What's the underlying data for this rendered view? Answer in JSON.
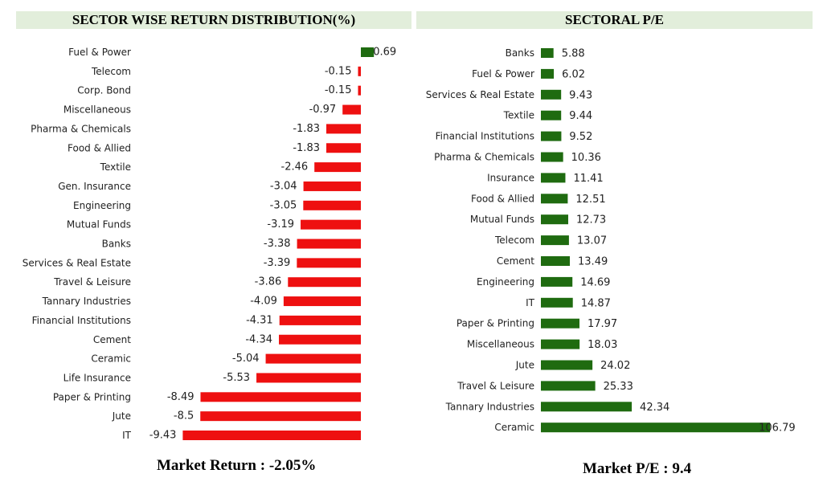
{
  "left_footer": "Market Return : -2.05%",
  "right_footer": "Market P/E : 9.4",
  "colors": {
    "negative": "#ee1010",
    "positive": "#1f6b10",
    "pe": "#1f6b10",
    "title_bg": "#e2eedb"
  },
  "chart_data": [
    {
      "type": "bar",
      "orientation": "horizontal",
      "title": "SECTOR WISE RETURN DISTRIBUTION(%)",
      "xlim": [
        -9.43,
        0.69
      ],
      "categories": [
        "Fuel & Power",
        "Telecom",
        "Corp. Bond",
        "Miscellaneous",
        "Pharma & Chemicals",
        "Food & Allied",
        "Textile",
        "Gen. Insurance",
        "Engineering",
        "Mutual Funds",
        "Banks",
        "Services & Real Estate",
        "Travel & Leisure",
        "Tannary Industries",
        "Financial Institutions",
        "Cement",
        "Ceramic",
        "Life Insurance",
        "Paper & Printing",
        "Jute",
        "IT"
      ],
      "values": [
        0.69,
        -0.15,
        -0.15,
        -0.97,
        -1.83,
        -1.83,
        -2.46,
        -3.04,
        -3.05,
        -3.19,
        -3.38,
        -3.39,
        -3.86,
        -4.09,
        -4.31,
        -4.34,
        -5.04,
        -5.53,
        -8.49,
        -8.5,
        -9.43
      ]
    },
    {
      "type": "bar",
      "orientation": "horizontal",
      "title": "SECTORAL P/E",
      "xlim": [
        0,
        106.79
      ],
      "categories": [
        "Banks",
        "Fuel & Power",
        "Services & Real Estate",
        "Textile",
        "Financial Institutions",
        "Pharma & Chemicals",
        "Insurance",
        "Food & Allied",
        "Mutual Funds",
        "Telecom",
        "Cement",
        "Engineering",
        "IT",
        "Paper & Printing",
        "Miscellaneous",
        "Jute",
        "Travel & Leisure",
        "Tannary Industries",
        "Ceramic"
      ],
      "values": [
        5.88,
        6.02,
        9.43,
        9.44,
        9.52,
        10.36,
        11.41,
        12.51,
        12.73,
        13.07,
        13.49,
        14.69,
        14.87,
        17.97,
        18.03,
        24.02,
        25.33,
        42.34,
        106.79
      ]
    }
  ]
}
